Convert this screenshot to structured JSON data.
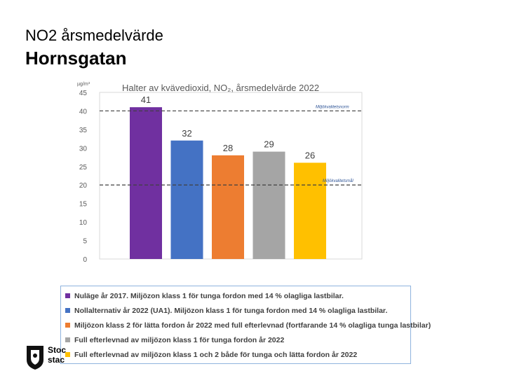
{
  "slide": {
    "title": "NO2 årsmedelvärde",
    "heading": "Hornsgatan"
  },
  "chart_data": {
    "type": "bar",
    "title": "Halter av kvävedioxid, NO₂, årsmedelvärde 2022",
    "ylabel": "µg/m³",
    "xlabel": "",
    "ylim": [
      0,
      45
    ],
    "yticks": [
      0,
      5,
      10,
      15,
      20,
      25,
      30,
      35,
      40,
      45
    ],
    "grid": false,
    "categories": [
      "Nuläge år 2017",
      "Nollalternativ år 2022 (UA1)",
      "Miljözon klass 2 år 2022",
      "Full efterlevnad klass 1",
      "Full efterlevnad klass 1 och 2"
    ],
    "values": [
      41,
      32,
      28,
      29,
      26
    ],
    "colors": [
      "#7030a0",
      "#4472c4",
      "#ed7d31",
      "#a5a5a5",
      "#ffc000"
    ],
    "reference_lines": [
      {
        "value": 40,
        "label": "Miljökvalitetsnorm"
      },
      {
        "value": 20,
        "label": "Miljökvalitetsmål"
      }
    ],
    "legend": [
      "Nuläge år 2017. Miljözon klass 1 för tunga fordon med 14 % olagliga lastbilar.",
      "Nollalternativ år 2022 (UA1). Miljözon klass 1 för tunga fordon med 14 % olagliga lastbilar.",
      "Miljözon klass 2 för lätta fordon år 2022 med full efterlevnad (fortfarande 14 % olagliga tunga lastbilar)",
      "Full efterlevnad av miljözon klass 1 för tunga fordon år 2022",
      "Full efterlevnad av miljözon klass 1 och 2 både för tunga och lätta fordon år 2022"
    ]
  },
  "logo": {
    "line1": "Stoc",
    "line2": "stac"
  }
}
